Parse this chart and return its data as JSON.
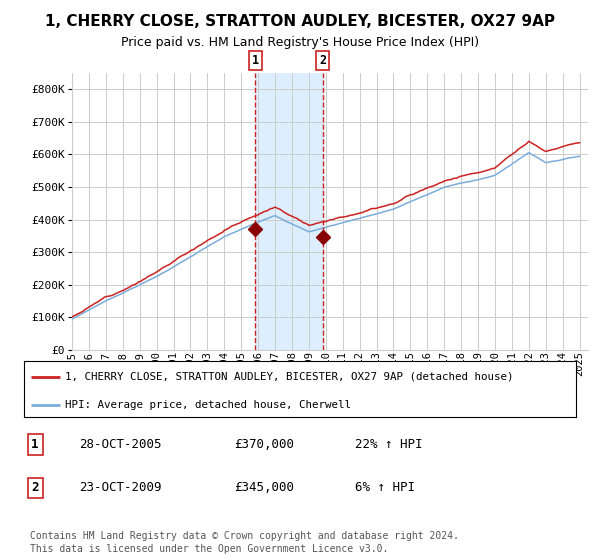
{
  "title": "1, CHERRY CLOSE, STRATTON AUDLEY, BICESTER, OX27 9AP",
  "subtitle": "Price paid vs. HM Land Registry's House Price Index (HPI)",
  "legend_line1": "1, CHERRY CLOSE, STRATTON AUDLEY, BICESTER, OX27 9AP (detached house)",
  "legend_line2": "HPI: Average price, detached house, Cherwell",
  "sale1_label": "1",
  "sale2_label": "2",
  "sale1_date": "28-OCT-2005",
  "sale1_price": 370000,
  "sale1_pct": "22% ↑ HPI",
  "sale2_date": "23-OCT-2009",
  "sale2_price": 345000,
  "sale2_pct": "6% ↑ HPI",
  "footnote_line1": "Contains HM Land Registry data © Crown copyright and database right 2024.",
  "footnote_line2": "This data is licensed under the Open Government Licence v3.0.",
  "hpi_color": "#7aaddb",
  "price_color": "#cc2222",
  "marker_color": "#880000",
  "bg_color": "#ffffff",
  "grid_color": "#cccccc",
  "shade_color": "#ddeeff",
  "vline_color": "#cc2222",
  "ylim_min": 0,
  "ylim_max": 850000,
  "yticks": [
    0,
    100000,
    200000,
    300000,
    400000,
    500000,
    600000,
    700000,
    800000
  ],
  "ytick_labels": [
    "£0",
    "£100K",
    "£200K",
    "£300K",
    "£400K",
    "£500K",
    "£600K",
    "£700K",
    "£800K"
  ],
  "xmin": 1995,
  "xmax": 2025.5,
  "xticks": [
    1995,
    1996,
    1997,
    1998,
    1999,
    2000,
    2001,
    2002,
    2003,
    2004,
    2005,
    2006,
    2007,
    2008,
    2009,
    2010,
    2011,
    2012,
    2013,
    2014,
    2015,
    2016,
    2017,
    2018,
    2019,
    2020,
    2021,
    2022,
    2023,
    2024,
    2025
  ],
  "sale1_x": 2005.83,
  "sale2_x": 2009.81,
  "sale1_y": 370000,
  "sale2_y": 345000
}
